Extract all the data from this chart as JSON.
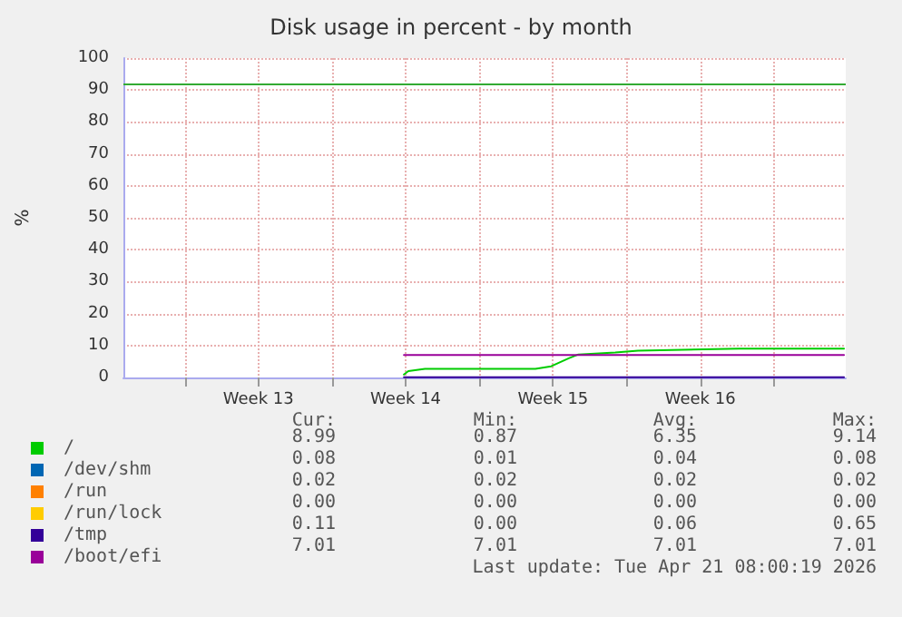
{
  "chart_data": {
    "type": "line",
    "title": "Disk usage in percent - by month",
    "ylabel": "%",
    "xlim": [
      "2026-03-18T02:00",
      "2026-04-21T10:00"
    ],
    "xticks": [
      {
        "value": "2026-03-21T00:00",
        "label": null
      },
      {
        "value": "2026-03-24T12:00",
        "label": "Week 13"
      },
      {
        "value": "2026-03-28T00:00",
        "label": null
      },
      {
        "value": "2026-03-31T12:00",
        "label": "Week 14"
      },
      {
        "value": "2026-04-04T00:00",
        "label": null
      },
      {
        "value": "2026-04-07T12:00",
        "label": "Week 15"
      },
      {
        "value": "2026-04-11T00:00",
        "label": null
      },
      {
        "value": "2026-04-14T12:00",
        "label": "Week 16"
      },
      {
        "value": "2026-04-18T00:00",
        "label": null
      }
    ],
    "ylim": [
      0,
      100
    ],
    "yticks": [
      0,
      10,
      20,
      30,
      40,
      50,
      60,
      70,
      80,
      90,
      100
    ],
    "grid": true,
    "legend": "bottom left",
    "marker": "none",
    "line_style": "solid",
    "series": [
      {
        "name": "/",
        "color": "#00cc00",
        "x": [
          "2026-03-31T10:00",
          "2026-03-31T15:00",
          "2026-04-01T10:00",
          "2026-04-06T16:00",
          "2026-04-07T10:00",
          "2026-04-08T06:00",
          "2026-04-08T17:00",
          "2026-04-10T11:00",
          "2026-04-11T13:00",
          "2026-04-16T08:00",
          "2026-04-21T08:00"
        ],
        "values": [
          0.9,
          2,
          2.7,
          2.7,
          3.5,
          6,
          7.2,
          7.8,
          8.4,
          9.0,
          9.0
        ]
      },
      {
        "name": "/dev/shm",
        "color": "#0066b3"
      },
      {
        "name": "/run",
        "color": "#ff8000"
      },
      {
        "name": "/run/lock",
        "color": "#ffcc00"
      },
      {
        "name": "/tmp",
        "color": "#330099",
        "x": [
          "2026-03-31T10:00",
          "2026-04-21T08:00"
        ],
        "values": [
          0.1,
          0.1
        ]
      },
      {
        "name": "/boot/efi",
        "color": "#990099",
        "x": [
          "2026-03-31T10:00",
          "2026-04-21T08:00"
        ],
        "values": [
          7,
          7
        ]
      }
    ],
    "ref_lines": [
      {
        "axis": "y",
        "value": 92,
        "color": "#33aa33"
      }
    ],
    "annotations": [
      "Cur:",
      "Min:",
      "Avg:",
      "Max:",
      "8.99",
      "0.87",
      "6.35",
      "9.14",
      "0.08",
      "0.01",
      "0.04",
      "0.08",
      "0.02",
      "0.02",
      "0.02",
      "0.02",
      "0.00",
      "0.00",
      "0.00",
      "0.00",
      "0.11",
      "0.00",
      "0.06",
      "0.65",
      "7.01",
      "7.01",
      "7.01",
      "7.01",
      "Last update: Tue Apr 21 08:00:19 2026"
    ]
  }
}
